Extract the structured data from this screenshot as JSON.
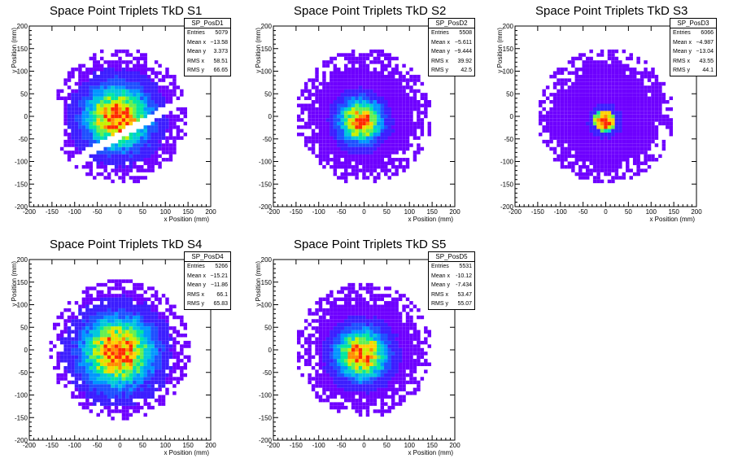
{
  "chart_data": [
    {
      "type": "heatmap",
      "title": "Space Point Triplets TkD S1",
      "xlabel": "x Position (mm)",
      "ylabel": "y Position (mm)",
      "xlim": [
        -200,
        200
      ],
      "ylim": [
        -200,
        200
      ],
      "xticks": [
        -200,
        -150,
        -100,
        -50,
        0,
        50,
        100,
        150,
        200
      ],
      "yticks": [
        -200,
        -150,
        -100,
        -50,
        0,
        50,
        100,
        150,
        200
      ],
      "stats": {
        "name": "SP_PosD1",
        "rows": [
          [
            "Entries",
            "5079"
          ],
          [
            "Mean x",
            "−13.58"
          ],
          [
            "Mean y",
            "3.373"
          ],
          [
            "RMS x",
            "58.51"
          ],
          [
            "RMS y",
            "66.65"
          ]
        ]
      },
      "distribution": {
        "center": [
          -5,
          -3
        ],
        "radius": 150,
        "gap_band": true
      }
    },
    {
      "type": "heatmap",
      "title": "Space Point Triplets TkD S2",
      "xlabel": "x Position (mm)",
      "ylabel": "y Position (mm)",
      "xlim": [
        -200,
        200
      ],
      "ylim": [
        -200,
        200
      ],
      "xticks": [
        -200,
        -150,
        -100,
        -50,
        0,
        50,
        100,
        150,
        200
      ],
      "yticks": [
        -200,
        -150,
        -100,
        -50,
        0,
        50,
        100,
        150,
        200
      ],
      "stats": {
        "name": "SP_PosD2",
        "rows": [
          [
            "Entries",
            "5508"
          ],
          [
            "Mean x",
            "−5.611"
          ],
          [
            "Mean y",
            "−9.444"
          ],
          [
            "RMS x",
            "39.92"
          ],
          [
            "RMS y",
            "42.5"
          ]
        ]
      },
      "distribution": {
        "center": [
          -8,
          -10
        ],
        "radius": 150,
        "gap_band": false
      }
    },
    {
      "type": "heatmap",
      "title": "Space Point Triplets TkD S3",
      "xlabel": "x Position (mm)",
      "ylabel": "y Position (mm)",
      "xlim": [
        -200,
        200
      ],
      "ylim": [
        -200,
        200
      ],
      "xticks": [
        -200,
        -150,
        -100,
        -50,
        0,
        50,
        100,
        150,
        200
      ],
      "yticks": [
        -200,
        -150,
        -100,
        -50,
        0,
        50,
        100,
        150,
        200
      ],
      "stats": {
        "name": "SP_PosD3",
        "rows": [
          [
            "Entries",
            "6066"
          ],
          [
            "Mean x",
            "−4.987"
          ],
          [
            "Mean y",
            "−13.04"
          ],
          [
            "RMS x",
            "43.55"
          ],
          [
            "RMS y",
            "44.1"
          ]
        ]
      },
      "distribution": {
        "center": [
          -2,
          -10
        ],
        "radius": 150,
        "gap_band": false
      }
    },
    {
      "type": "heatmap",
      "title": "Space Point Triplets TkD S4",
      "xlabel": "x Position (mm)",
      "ylabel": "y Position (mm)",
      "xlim": [
        -200,
        200
      ],
      "ylim": [
        -200,
        200
      ],
      "xticks": [
        -200,
        -150,
        -100,
        -50,
        0,
        50,
        100,
        150,
        200
      ],
      "yticks": [
        -200,
        -150,
        -100,
        -50,
        0,
        50,
        100,
        150,
        200
      ],
      "stats": {
        "name": "SP_PosD4",
        "rows": [
          [
            "Entries",
            "5266"
          ],
          [
            "Mean x",
            "−15.21"
          ],
          [
            "Mean y",
            "−11.86"
          ],
          [
            "RMS x",
            "66.1"
          ],
          [
            "RMS y",
            "65.83"
          ]
        ]
      },
      "distribution": {
        "center": [
          -5,
          -5
        ],
        "radius": 155,
        "gap_band": false
      }
    },
    {
      "type": "heatmap",
      "title": "Space Point Triplets TkD S5",
      "xlabel": "x Position (mm)",
      "ylabel": "y Position (mm)",
      "xlim": [
        -200,
        200
      ],
      "ylim": [
        -200,
        200
      ],
      "xticks": [
        -200,
        -150,
        -100,
        -50,
        0,
        50,
        100,
        150,
        200
      ],
      "yticks": [
        -200,
        -150,
        -100,
        -50,
        0,
        50,
        100,
        150,
        200
      ],
      "stats": {
        "name": "SP_PosD5",
        "rows": [
          [
            "Entries",
            "5531"
          ],
          [
            "Mean x",
            "-10.12"
          ],
          [
            "Mean y",
            "-7.434"
          ],
          [
            "RMS x",
            "53.47"
          ],
          [
            "RMS y",
            "55.07"
          ]
        ]
      },
      "distribution": {
        "center": [
          -5,
          -10
        ],
        "radius": 150,
        "gap_band": false
      }
    }
  ],
  "colors": {
    "palette": [
      "#6e00ff",
      "#3c1eff",
      "#1e50ff",
      "#0096ff",
      "#00c8dc",
      "#00e6a0",
      "#64f050",
      "#c8f000",
      "#ffd200",
      "#ff8c00",
      "#ff2800"
    ],
    "frame": "#000000"
  }
}
